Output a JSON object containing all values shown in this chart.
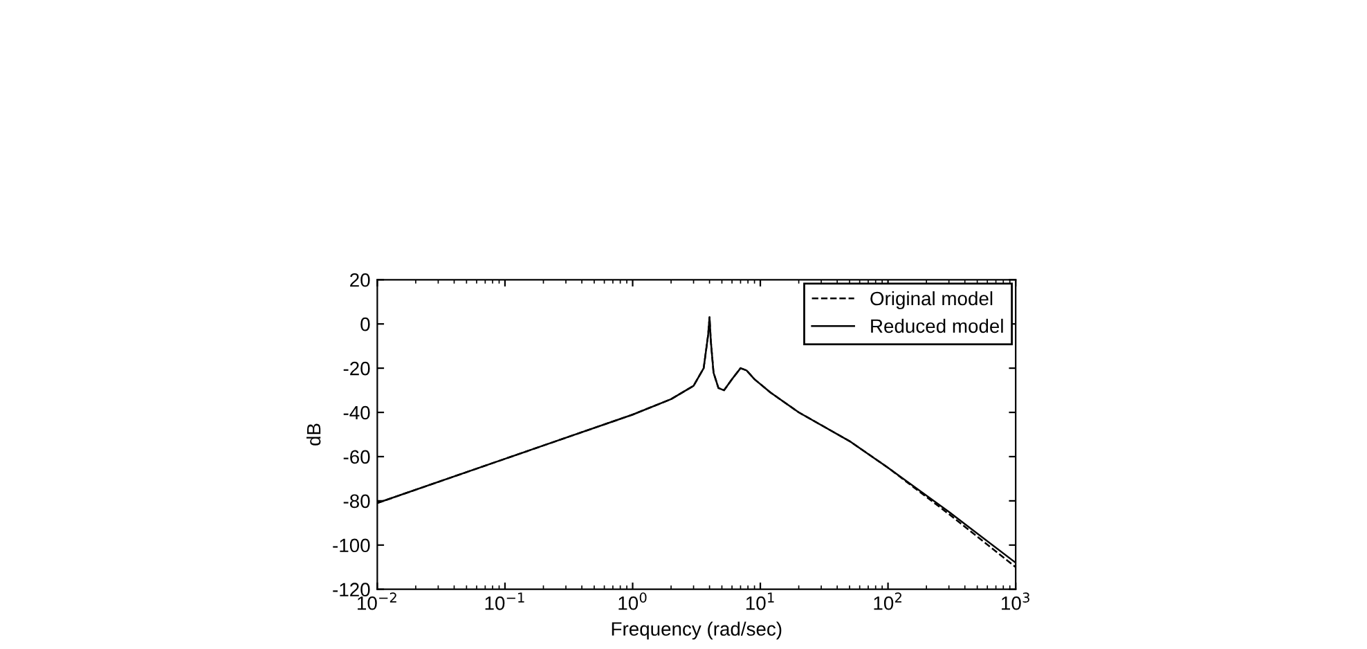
{
  "chart_data": {
    "type": "line",
    "xlabel": "Frequency (rad/sec)",
    "ylabel": "dB",
    "log": "x",
    "xlim": [
      0.01,
      1000
    ],
    "ylim": [
      -120,
      20
    ],
    "xticks": [
      {
        "value": 0.01,
        "label": "10$^{−2}$"
      },
      {
        "value": 0.1,
        "label": "10$^{−1}$"
      },
      {
        "value": 1,
        "label": "10$^{0}$"
      },
      {
        "value": 10,
        "label": "10$^{1}$"
      },
      {
        "value": 100,
        "label": "10$^{2}$"
      },
      {
        "value": 1000,
        "label": "10$^{3}$"
      }
    ],
    "yticks": [
      -120,
      -100,
      -80,
      -60,
      -40,
      -20,
      0,
      20
    ],
    "grid": false,
    "legend": "top right",
    "series": [
      {
        "name": "Original model",
        "color": "#000000",
        "line_style": "dashed",
        "x": [
          0.01,
          0.1,
          1,
          2,
          3,
          3.6,
          3.9,
          4.0,
          4.1,
          4.3,
          4.7,
          5.2,
          6,
          7,
          7.8,
          9,
          12,
          20,
          50,
          100,
          300,
          1000
        ],
        "values": [
          -81,
          -61,
          -41,
          -34,
          -28,
          -20,
          -5,
          3,
          -8,
          -22,
          -29,
          -30,
          -25,
          -20,
          -21,
          -25,
          -31,
          -40,
          -53,
          -65,
          -86,
          -110
        ]
      },
      {
        "name": "Reduced model",
        "color": "#000000",
        "line_style": "solid",
        "x": [
          0.01,
          0.1,
          1,
          2,
          3,
          3.6,
          3.9,
          4.0,
          4.1,
          4.3,
          4.7,
          5.2,
          6,
          7,
          7.8,
          9,
          12,
          20,
          50,
          100,
          300,
          1000
        ],
        "values": [
          -81,
          -61,
          -41,
          -34,
          -28,
          -20,
          -5,
          3,
          -8,
          -22,
          -29,
          -30,
          -25,
          -20,
          -21,
          -25,
          -31,
          -40,
          -53,
          -65,
          -85,
          -108
        ]
      }
    ]
  }
}
